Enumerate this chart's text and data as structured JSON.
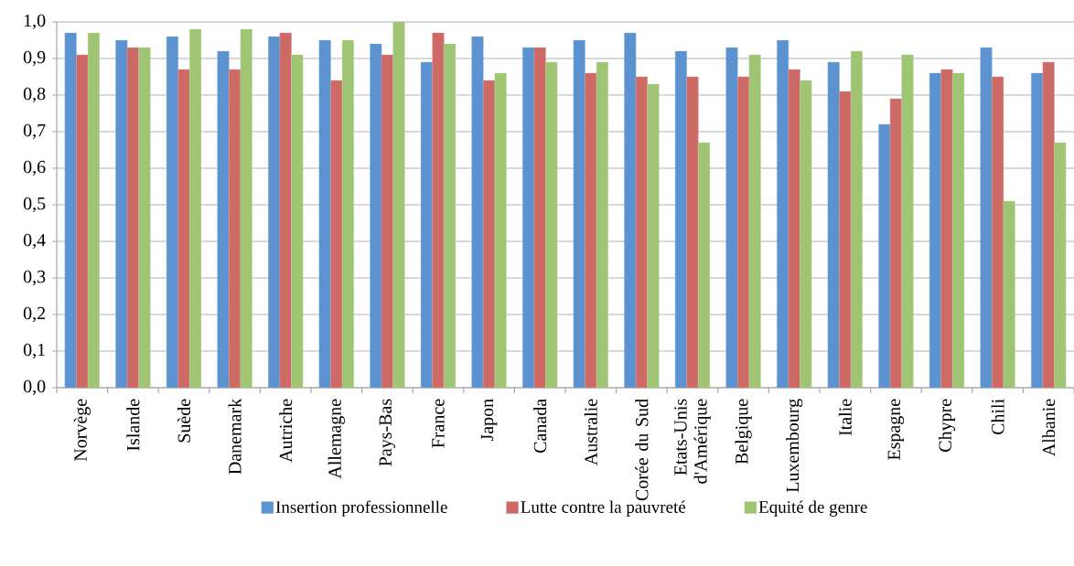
{
  "chart_data": {
    "type": "bar",
    "categories": [
      "Norvège",
      "Islande",
      "Suède",
      "Danemark",
      "Autriche",
      "Allemagne",
      "Pays-Bas",
      "France",
      "Japon",
      "Canada",
      "Australie",
      "Corée du Sud",
      "Etats-Unis d'Amérique",
      "Belgique",
      "Luxembourg",
      "Italie",
      "Espagne",
      "Chypre",
      "Chili",
      "Albanie"
    ],
    "series": [
      {
        "name": "Insertion professionnelle",
        "color": "#5b92cf",
        "values": [
          0.97,
          0.95,
          0.96,
          0.92,
          0.96,
          0.95,
          0.94,
          0.89,
          0.96,
          0.93,
          0.95,
          0.97,
          0.92,
          0.93,
          0.95,
          0.89,
          0.72,
          0.86,
          0.93,
          0.86
        ]
      },
      {
        "name": "Lutte contre la pauvreté",
        "color": "#cd6a66",
        "values": [
          0.91,
          0.93,
          0.87,
          0.87,
          0.97,
          0.84,
          0.91,
          0.97,
          0.84,
          0.93,
          0.86,
          0.85,
          0.85,
          0.85,
          0.87,
          0.81,
          0.79,
          0.87,
          0.85,
          0.89
        ]
      },
      {
        "name": "Equité de genre",
        "color": "#9fc474",
        "values": [
          0.97,
          0.93,
          0.98,
          0.98,
          0.91,
          0.95,
          1.0,
          0.94,
          0.86,
          0.89,
          0.89,
          0.83,
          0.67,
          0.91,
          0.84,
          0.92,
          0.91,
          0.86,
          0.51,
          0.67
        ]
      }
    ],
    "ylim": [
      0,
      1
    ],
    "yticks": [
      {
        "value": 0,
        "label": "0,0"
      },
      {
        "value": 0.1,
        "label": "0,1"
      },
      {
        "value": 0.2,
        "label": "0,2"
      },
      {
        "value": 0.3,
        "label": "0,3"
      },
      {
        "value": 0.4,
        "label": "0,4"
      },
      {
        "value": 0.5,
        "label": "0,5"
      },
      {
        "value": 0.6,
        "label": "0,6"
      },
      {
        "value": 0.7,
        "label": "0,7"
      },
      {
        "value": 0.8,
        "label": "0,8"
      },
      {
        "value": 0.9,
        "label": "0,9"
      },
      {
        "value": 1,
        "label": "1,0"
      }
    ],
    "grid": "y",
    "legend": "bottom"
  }
}
